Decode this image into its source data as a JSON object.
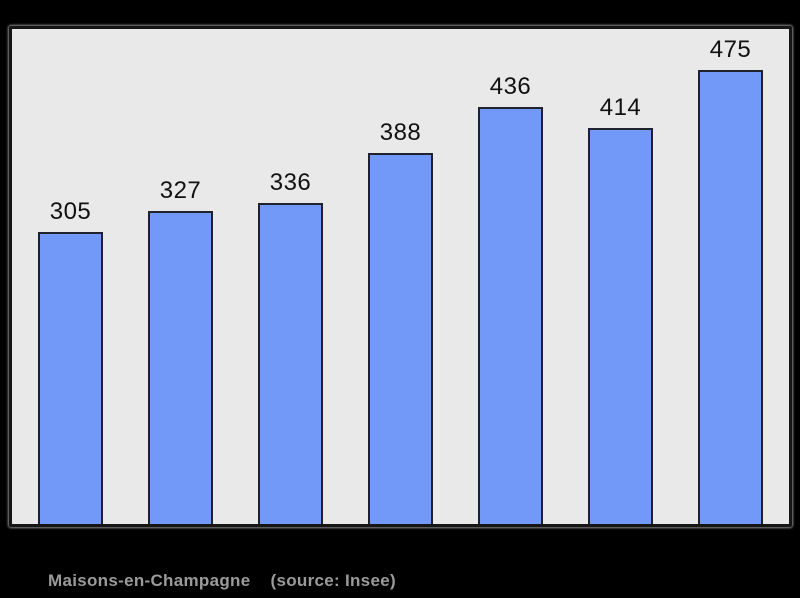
{
  "page": {
    "background": "#000000"
  },
  "chart_data": {
    "type": "bar",
    "values": [
      305,
      327,
      336,
      388,
      436,
      414,
      475
    ],
    "data_labels": [
      "305",
      "327",
      "336",
      "388",
      "436",
      "414",
      "475"
    ],
    "categories": [
      "",
      "",
      "",
      "",
      "",
      "",
      ""
    ],
    "title": "",
    "xlabel": "",
    "ylabel": "",
    "ylim": [
      0,
      525
    ],
    "grid": false,
    "legend": false,
    "bar_fill": "#7298f8",
    "bar_border": "#20222b",
    "plot_background": "#e9e9e9",
    "label_color": "#111111",
    "caption": "Maisons-en-Champagne (source: Insee)"
  },
  "caption": {
    "commune": "Maisons-en-Champagne",
    "source": "(source: Insee)",
    "color": "#9b9b9b"
  }
}
